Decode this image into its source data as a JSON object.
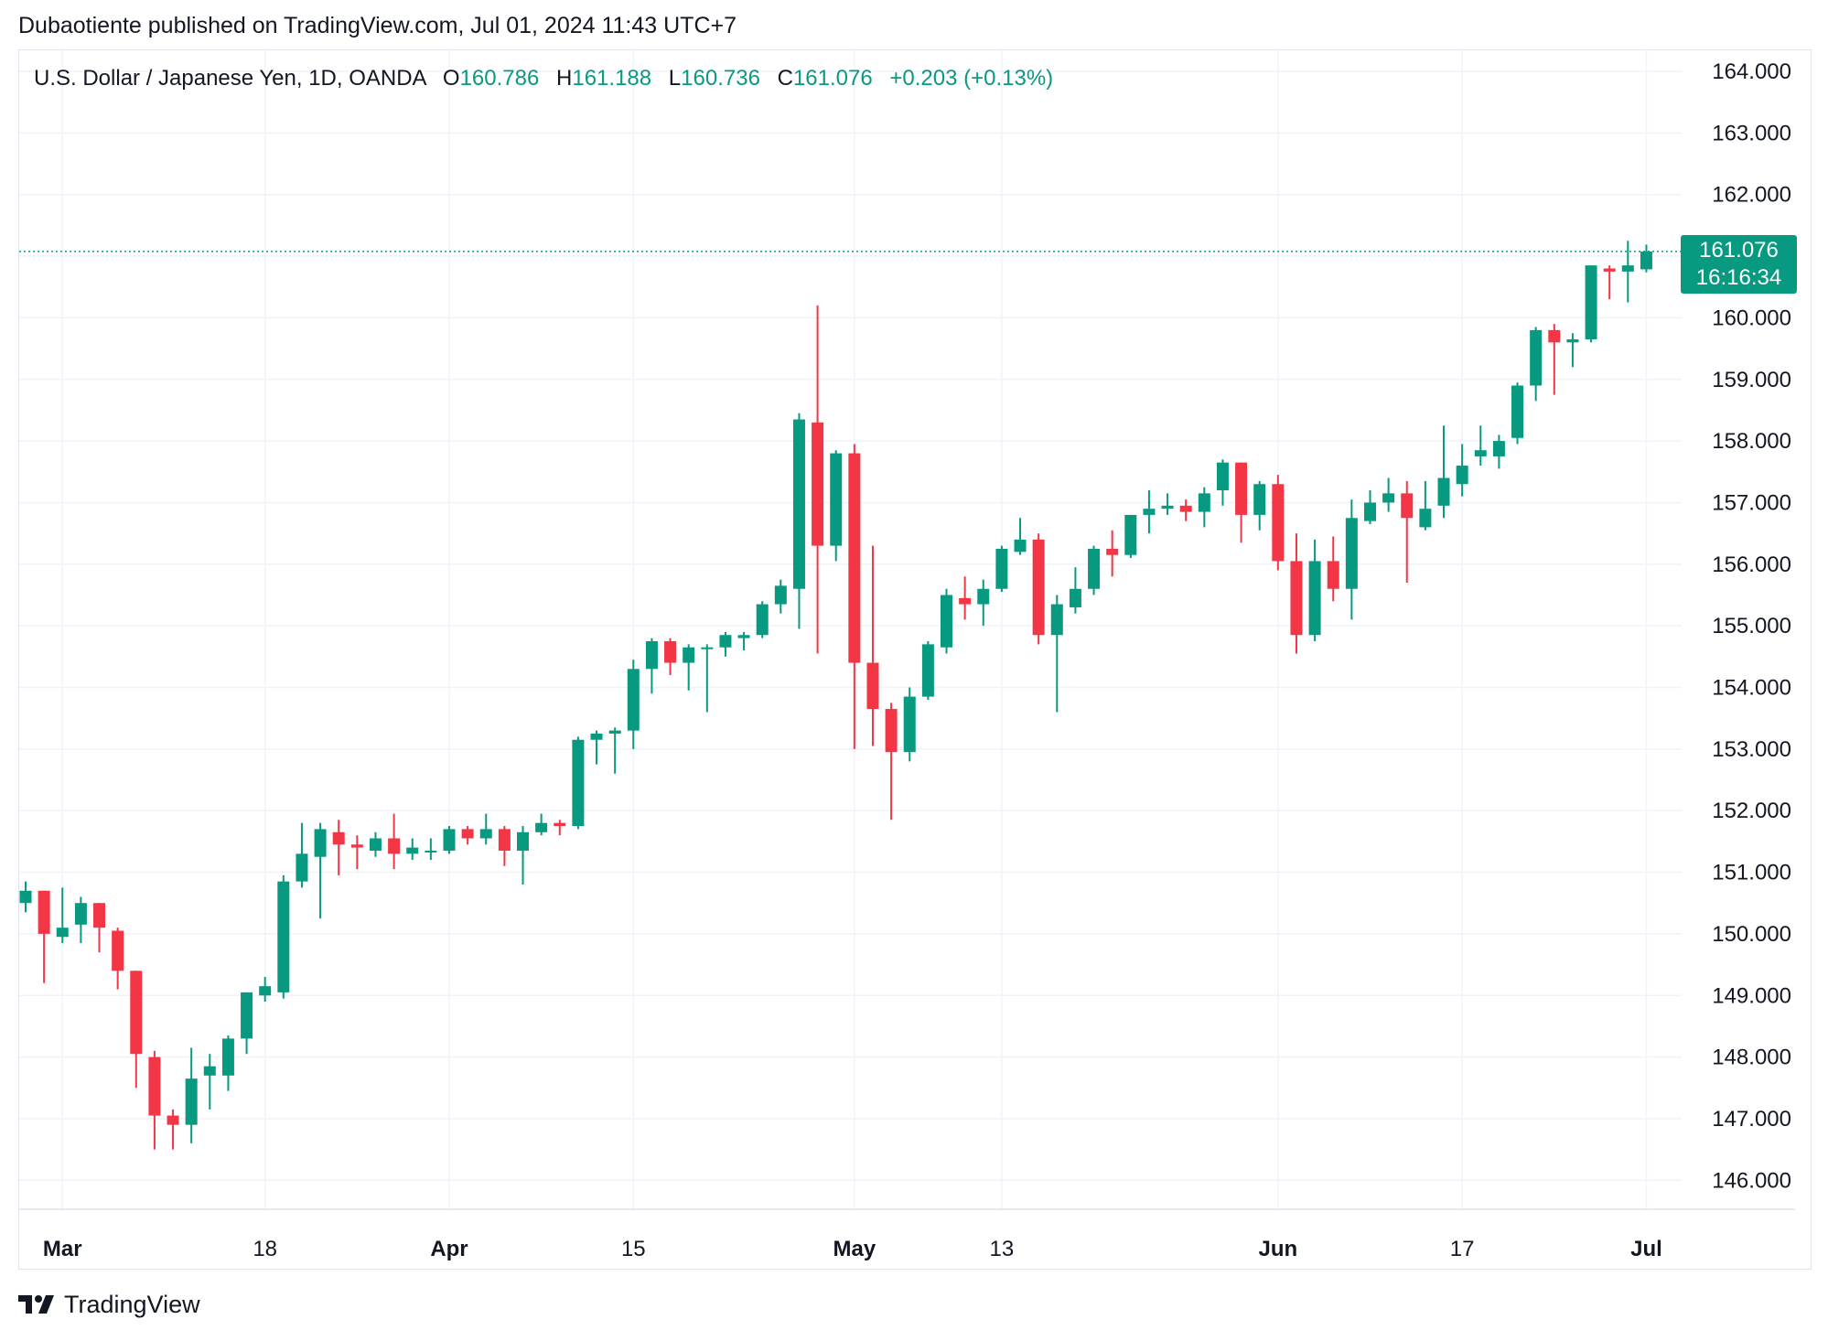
{
  "header": {
    "published_line": "Dubaotiente published on TradingView.com, Jul 01, 2024 11:43 UTC+7"
  },
  "legend": {
    "symbol": "U.S. Dollar / Japanese Yen, 1D, OANDA",
    "open_label": "O",
    "open": "160.786",
    "high_label": "H",
    "high": "161.188",
    "low_label": "L",
    "low": "160.736",
    "close_label": "C",
    "close": "161.076",
    "change": "+0.203 (+0.13%)"
  },
  "last_price": {
    "price": "161.076",
    "countdown": "16:16:34"
  },
  "footer": {
    "brand": "TradingView",
    "brand_icon": "tradingview-logo-icon"
  },
  "colors": {
    "up": "#089981",
    "down": "#f23645",
    "grid": "#f0f3fa",
    "axis_text": "#131722"
  },
  "chart_data": {
    "type": "candlestick",
    "title": "U.S. Dollar / Japanese Yen, 1D, OANDA",
    "ylim": [
      145.2,
      164.2
    ],
    "grid": true,
    "y_ticks": [
      "164.000",
      "163.000",
      "162.000",
      "161.000",
      "160.000",
      "159.000",
      "158.000",
      "157.000",
      "156.000",
      "155.000",
      "154.000",
      "153.000",
      "152.000",
      "151.000",
      "150.000",
      "149.000",
      "148.000",
      "147.000",
      "146.000"
    ],
    "x_ticks": [
      {
        "label": "Mar",
        "index": 2,
        "bold": true
      },
      {
        "label": "18",
        "index": 13,
        "bold": false
      },
      {
        "label": "Apr",
        "index": 23,
        "bold": true
      },
      {
        "label": "15",
        "index": 33,
        "bold": false
      },
      {
        "label": "May",
        "index": 45,
        "bold": true
      },
      {
        "label": "13",
        "index": 53,
        "bold": false
      },
      {
        "label": "Jun",
        "index": 68,
        "bold": true
      },
      {
        "label": "17",
        "index": 78,
        "bold": false
      },
      {
        "label": "Jul",
        "index": 88,
        "bold": true
      }
    ],
    "last_close_line": 161.076,
    "candles": [
      {
        "o": 150.5,
        "h": 150.85,
        "l": 150.35,
        "c": 150.7
      },
      {
        "o": 150.7,
        "h": 150.7,
        "l": 149.2,
        "c": 150.0
      },
      {
        "o": 149.95,
        "h": 150.75,
        "l": 149.85,
        "c": 150.1
      },
      {
        "o": 150.15,
        "h": 150.6,
        "l": 149.85,
        "c": 150.5
      },
      {
        "o": 150.5,
        "h": 150.5,
        "l": 149.7,
        "c": 150.1
      },
      {
        "o": 150.05,
        "h": 150.1,
        "l": 149.1,
        "c": 149.4
      },
      {
        "o": 149.4,
        "h": 149.4,
        "l": 147.5,
        "c": 148.05
      },
      {
        "o": 148.0,
        "h": 148.1,
        "l": 146.5,
        "c": 147.05
      },
      {
        "o": 147.05,
        "h": 147.15,
        "l": 146.5,
        "c": 146.9
      },
      {
        "o": 146.9,
        "h": 148.15,
        "l": 146.6,
        "c": 147.65
      },
      {
        "o": 147.7,
        "h": 148.05,
        "l": 147.15,
        "c": 147.85
      },
      {
        "o": 147.7,
        "h": 148.35,
        "l": 147.45,
        "c": 148.3
      },
      {
        "o": 148.3,
        "h": 149.05,
        "l": 148.05,
        "c": 149.05
      },
      {
        "o": 149.0,
        "h": 149.3,
        "l": 148.9,
        "c": 149.15
      },
      {
        "o": 149.05,
        "h": 150.95,
        "l": 148.95,
        "c": 150.85
      },
      {
        "o": 150.85,
        "h": 151.8,
        "l": 150.75,
        "c": 151.3
      },
      {
        "o": 151.25,
        "h": 151.8,
        "l": 150.25,
        "c": 151.7
      },
      {
        "o": 151.65,
        "h": 151.85,
        "l": 150.95,
        "c": 151.45
      },
      {
        "o": 151.45,
        "h": 151.6,
        "l": 151.05,
        "c": 151.4
      },
      {
        "o": 151.35,
        "h": 151.65,
        "l": 151.25,
        "c": 151.55
      },
      {
        "o": 151.55,
        "h": 151.95,
        "l": 151.05,
        "c": 151.3
      },
      {
        "o": 151.3,
        "h": 151.55,
        "l": 151.2,
        "c": 151.4
      },
      {
        "o": 151.35,
        "h": 151.55,
        "l": 151.2,
        "c": 151.35
      },
      {
        "o": 151.35,
        "h": 151.75,
        "l": 151.3,
        "c": 151.7
      },
      {
        "o": 151.7,
        "h": 151.75,
        "l": 151.45,
        "c": 151.55
      },
      {
        "o": 151.55,
        "h": 151.95,
        "l": 151.45,
        "c": 151.7
      },
      {
        "o": 151.7,
        "h": 151.75,
        "l": 151.1,
        "c": 151.35
      },
      {
        "o": 151.35,
        "h": 151.75,
        "l": 150.8,
        "c": 151.65
      },
      {
        "o": 151.65,
        "h": 151.95,
        "l": 151.6,
        "c": 151.8
      },
      {
        "o": 151.8,
        "h": 151.85,
        "l": 151.6,
        "c": 151.75
      },
      {
        "o": 151.75,
        "h": 153.2,
        "l": 151.7,
        "c": 153.15
      },
      {
        "o": 153.15,
        "h": 153.3,
        "l": 152.75,
        "c": 153.25
      },
      {
        "o": 153.25,
        "h": 153.35,
        "l": 152.6,
        "c": 153.3
      },
      {
        "o": 153.3,
        "h": 154.45,
        "l": 153.0,
        "c": 154.3
      },
      {
        "o": 154.3,
        "h": 154.8,
        "l": 153.9,
        "c": 154.75
      },
      {
        "o": 154.75,
        "h": 154.8,
        "l": 154.2,
        "c": 154.4
      },
      {
        "o": 154.4,
        "h": 154.7,
        "l": 153.95,
        "c": 154.65
      },
      {
        "o": 154.65,
        "h": 154.7,
        "l": 153.6,
        "c": 154.65
      },
      {
        "o": 154.65,
        "h": 154.9,
        "l": 154.5,
        "c": 154.85
      },
      {
        "o": 154.8,
        "h": 154.9,
        "l": 154.6,
        "c": 154.85
      },
      {
        "o": 154.85,
        "h": 155.4,
        "l": 154.8,
        "c": 155.35
      },
      {
        "o": 155.35,
        "h": 155.75,
        "l": 155.2,
        "c": 155.65
      },
      {
        "o": 155.6,
        "h": 158.45,
        "l": 154.95,
        "c": 158.35
      },
      {
        "o": 158.3,
        "h": 160.2,
        "l": 154.55,
        "c": 156.3
      },
      {
        "o": 156.3,
        "h": 157.85,
        "l": 156.05,
        "c": 157.8
      },
      {
        "o": 157.8,
        "h": 157.95,
        "l": 153.0,
        "c": 154.4
      },
      {
        "o": 154.4,
        "h": 156.3,
        "l": 153.05,
        "c": 153.65
      },
      {
        "o": 153.65,
        "h": 153.75,
        "l": 151.85,
        "c": 152.95
      },
      {
        "o": 152.95,
        "h": 154.0,
        "l": 152.8,
        "c": 153.85
      },
      {
        "o": 153.85,
        "h": 154.75,
        "l": 153.8,
        "c": 154.7
      },
      {
        "o": 154.65,
        "h": 155.6,
        "l": 154.55,
        "c": 155.5
      },
      {
        "o": 155.45,
        "h": 155.8,
        "l": 155.1,
        "c": 155.35
      },
      {
        "o": 155.35,
        "h": 155.75,
        "l": 155.0,
        "c": 155.6
      },
      {
        "o": 155.6,
        "h": 156.3,
        "l": 155.55,
        "c": 156.25
      },
      {
        "o": 156.2,
        "h": 156.75,
        "l": 156.15,
        "c": 156.4
      },
      {
        "o": 156.4,
        "h": 156.5,
        "l": 154.7,
        "c": 154.85
      },
      {
        "o": 154.85,
        "h": 155.5,
        "l": 153.6,
        "c": 155.35
      },
      {
        "o": 155.3,
        "h": 155.95,
        "l": 155.2,
        "c": 155.6
      },
      {
        "o": 155.6,
        "h": 156.3,
        "l": 155.5,
        "c": 156.25
      },
      {
        "o": 156.25,
        "h": 156.55,
        "l": 155.8,
        "c": 156.15
      },
      {
        "o": 156.15,
        "h": 156.8,
        "l": 156.1,
        "c": 156.8
      },
      {
        "o": 156.8,
        "h": 157.2,
        "l": 156.5,
        "c": 156.9
      },
      {
        "o": 156.9,
        "h": 157.15,
        "l": 156.8,
        "c": 156.95
      },
      {
        "o": 156.95,
        "h": 157.05,
        "l": 156.7,
        "c": 156.85
      },
      {
        "o": 156.85,
        "h": 157.25,
        "l": 156.6,
        "c": 157.15
      },
      {
        "o": 157.2,
        "h": 157.7,
        "l": 156.95,
        "c": 157.65
      },
      {
        "o": 157.65,
        "h": 157.65,
        "l": 156.35,
        "c": 156.8
      },
      {
        "o": 156.8,
        "h": 157.35,
        "l": 156.55,
        "c": 157.3
      },
      {
        "o": 157.3,
        "h": 157.45,
        "l": 155.9,
        "c": 156.05
      },
      {
        "o": 156.05,
        "h": 156.5,
        "l": 154.55,
        "c": 154.85
      },
      {
        "o": 154.85,
        "h": 156.4,
        "l": 154.75,
        "c": 156.05
      },
      {
        "o": 156.05,
        "h": 156.45,
        "l": 155.4,
        "c": 155.6
      },
      {
        "o": 155.6,
        "h": 157.05,
        "l": 155.1,
        "c": 156.75
      },
      {
        "o": 156.7,
        "h": 157.2,
        "l": 156.65,
        "c": 157.0
      },
      {
        "o": 157.0,
        "h": 157.4,
        "l": 156.85,
        "c": 157.15
      },
      {
        "o": 157.15,
        "h": 157.35,
        "l": 155.7,
        "c": 156.75
      },
      {
        "o": 156.6,
        "h": 157.35,
        "l": 156.55,
        "c": 156.9
      },
      {
        "o": 156.95,
        "h": 158.25,
        "l": 156.75,
        "c": 157.4
      },
      {
        "o": 157.3,
        "h": 157.95,
        "l": 157.1,
        "c": 157.6
      },
      {
        "o": 157.75,
        "h": 158.25,
        "l": 157.6,
        "c": 157.85
      },
      {
        "o": 157.75,
        "h": 158.1,
        "l": 157.55,
        "c": 158.0
      },
      {
        "o": 158.05,
        "h": 158.95,
        "l": 157.95,
        "c": 158.9
      },
      {
        "o": 158.9,
        "h": 159.85,
        "l": 158.65,
        "c": 159.8
      },
      {
        "o": 159.8,
        "h": 159.9,
        "l": 158.75,
        "c": 159.6
      },
      {
        "o": 159.6,
        "h": 159.75,
        "l": 159.2,
        "c": 159.65
      },
      {
        "o": 159.65,
        "h": 160.85,
        "l": 159.6,
        "c": 160.85
      },
      {
        "o": 160.8,
        "h": 160.85,
        "l": 160.3,
        "c": 160.75
      },
      {
        "o": 160.75,
        "h": 161.25,
        "l": 160.25,
        "c": 160.85
      },
      {
        "o": 160.786,
        "h": 161.188,
        "l": 160.736,
        "c": 161.076
      }
    ]
  }
}
